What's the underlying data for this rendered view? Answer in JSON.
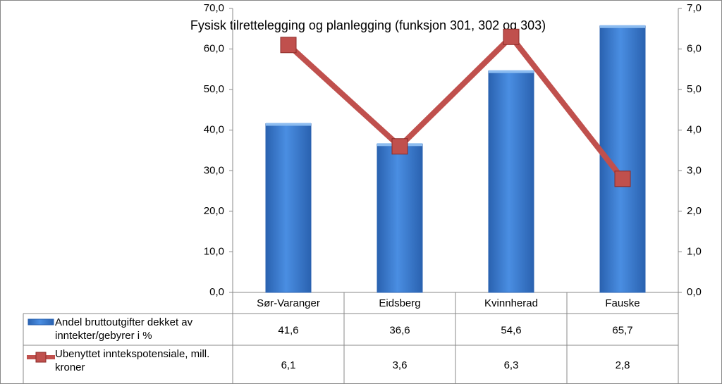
{
  "chart_data": {
    "type": "bar-line",
    "title": "Fysisk tilrettelegging og planlegging (funksjon 301, 302 og 303)",
    "categories": [
      "Sør-Varanger",
      "Eidsberg",
      "Kvinnherad",
      "Fauske"
    ],
    "series": [
      {
        "name": "Andel bruttoutgifter dekket av inntekter/gebyrer i %",
        "type": "bar",
        "color": "#3c7fd6",
        "values": [
          41.6,
          36.6,
          54.6,
          65.7
        ],
        "value_labels": [
          "41,6",
          "36,6",
          "54,6",
          "65,7"
        ]
      },
      {
        "name": "Ubenyttet inntekspotensiale, mill. kroner",
        "type": "line",
        "axis": "y2",
        "color": "#c0504d",
        "values": [
          6.1,
          3.6,
          6.3,
          2.8
        ],
        "value_labels": [
          "6,1",
          "3,6",
          "6,3",
          "2,8"
        ]
      }
    ],
    "ylim": [
      0,
      70
    ],
    "yticks": [
      {
        "value": 0,
        "label": "0,0"
      },
      {
        "value": 10,
        "label": "10,0"
      },
      {
        "value": 20,
        "label": "20,0"
      },
      {
        "value": 30,
        "label": "30,0"
      },
      {
        "value": 40,
        "label": "40,0"
      },
      {
        "value": 50,
        "label": "50,0"
      },
      {
        "value": 60,
        "label": "60,0"
      },
      {
        "value": 70,
        "label": "70,0"
      }
    ],
    "y2lim": [
      0,
      7
    ],
    "y2ticks": [
      {
        "value": 0,
        "label": "0,0"
      },
      {
        "value": 1,
        "label": "1,0"
      },
      {
        "value": 2,
        "label": "2,0"
      },
      {
        "value": 3,
        "label": "3,0"
      },
      {
        "value": 4,
        "label": "4,0"
      },
      {
        "value": 5,
        "label": "5,0"
      },
      {
        "value": 6,
        "label": "6,0"
      },
      {
        "value": 7,
        "label": "7,0"
      }
    ]
  }
}
